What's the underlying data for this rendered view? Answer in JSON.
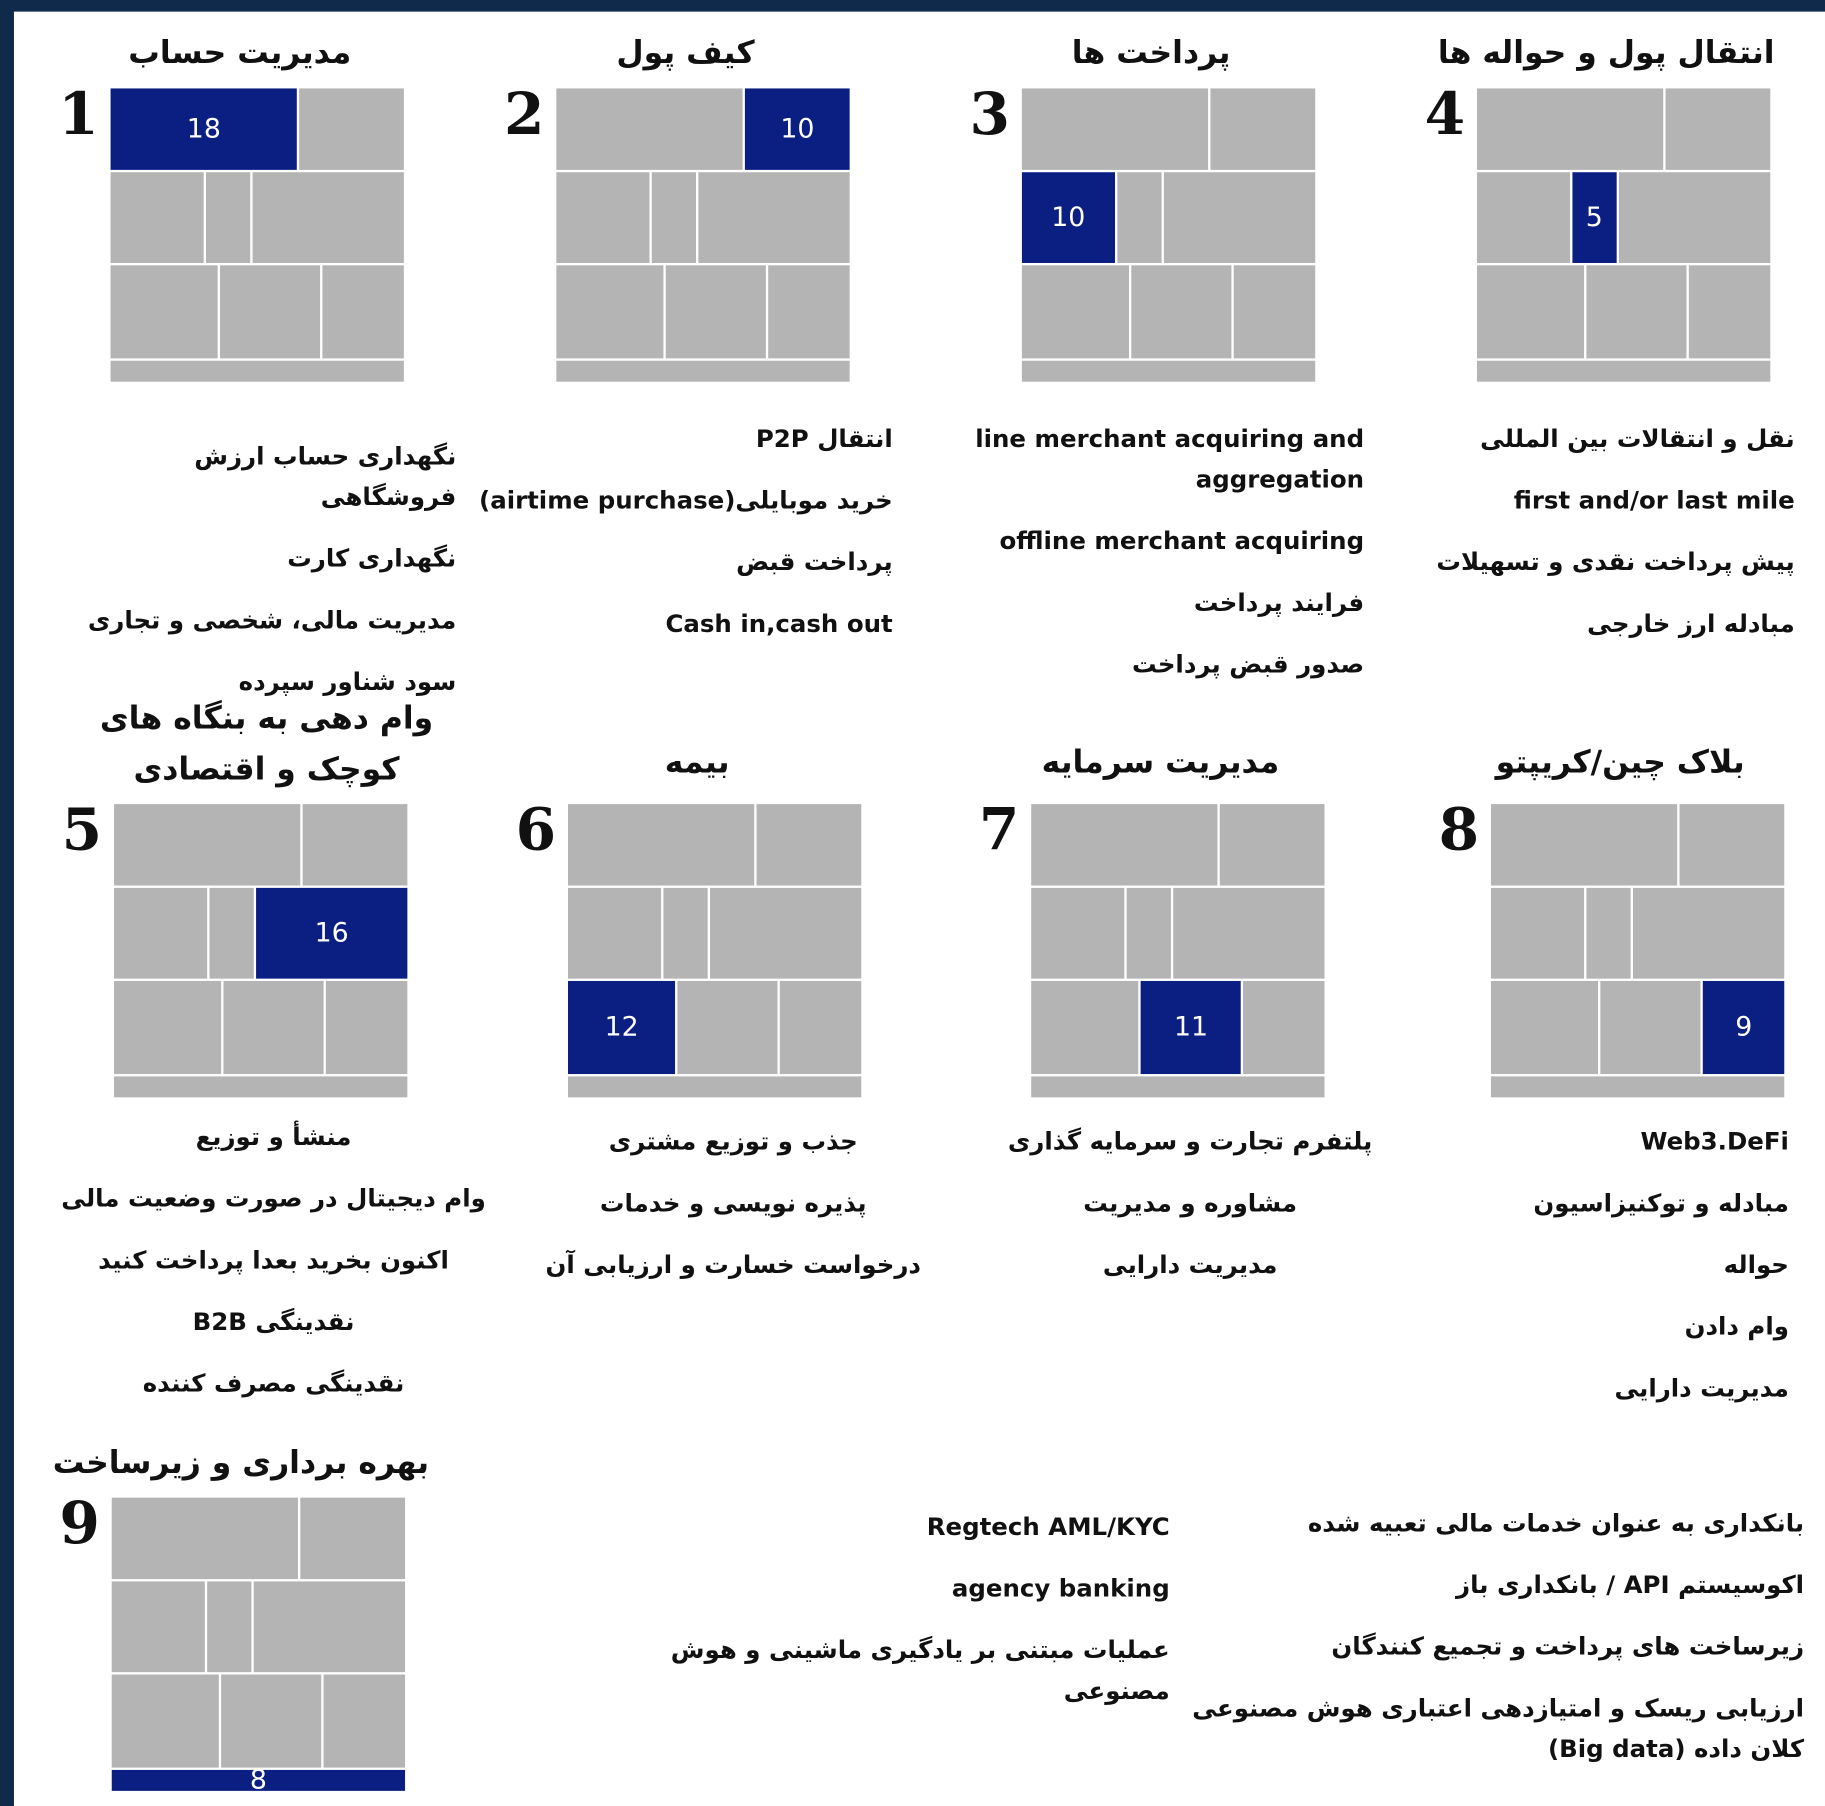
{
  "panels": [
    {
      "number": "1",
      "title": "مدیریت حساب",
      "highlight": "18",
      "columns": [
        [
          "نگهداری حساب ارزش فروشگاهی",
          "نگهداری کارت",
          "مدیریت مالی، شخصی و تجاری",
          "سود شناور سپرده"
        ]
      ]
    },
    {
      "number": "2",
      "title": "کیف پول",
      "highlight": "10",
      "columns": [
        [
          "انتقال P2P",
          "خرید موبایلی(airtime purchase)",
          "پرداخت قبض",
          "Cash in,cash out"
        ]
      ]
    },
    {
      "number": "3",
      "title": "پرداخت ها",
      "highlight": "10",
      "columns": [
        [
          "line merchant acquiring and aggregation",
          "offline merchant acquiring",
          "فرایند پرداخت",
          "صدور قبض پرداخت"
        ]
      ]
    },
    {
      "number": "4",
      "title": "انتقال پول و حواله ها",
      "highlight": "5",
      "columns": [
        [
          "نقل و انتقالات بین المللی",
          "first and/or last mile",
          "پیش پرداخت نقدی و تسهیلات",
          "مبادله ارز خارجی"
        ]
      ]
    },
    {
      "number": "5",
      "title": "وام دهی به بنگاه های کوچک و اقتصادی",
      "highlight": "16",
      "columns": [
        [
          "منشأ و توزیع",
          "وام دیجیتال در صورت وضعیت مالی",
          "اکنون بخرید بعدا پرداخت کنید",
          "نقدینگی B2B",
          "نقدینگی مصرف کننده"
        ]
      ]
    },
    {
      "number": "6",
      "title": "بیمه",
      "highlight": "12",
      "columns": [
        [
          "جذب و توزیع مشتری",
          "پذیره نویسی و خدمات",
          "درخواست خسارت و ارزیابی آن"
        ]
      ]
    },
    {
      "number": "7",
      "title": "مدیریت سرمایه",
      "highlight": "11",
      "columns": [
        [
          "پلتفرم تجارت و سرمایه گذاری",
          "مشاوره و مدیریت",
          "مدیریت دارایی"
        ]
      ]
    },
    {
      "number": "8",
      "title": "بلاک چین/کریپتو",
      "highlight": "9",
      "columns": [
        [
          "Web3.DeFi",
          "مبادله و توکنیزاسیون",
          "حواله",
          "وام دادن",
          "مدیریت دارایی"
        ]
      ]
    },
    {
      "number": "9",
      "title": "بهره برداری و زیرساخت",
      "highlight": "8",
      "columns": [
        [
          "بانکداری به عنوان خدمات مالی تعبیه شده",
          "اکوسیستم API / بانکداری باز",
          "زیرساخت های پرداخت و تجمیع کنندگان",
          "ارزیابی ریسک و امتیازدهی اعتباری هوش مصنوعی کلان داده (Big data)"
        ],
        [
          "Regtech AML/KYC",
          "agency banking",
          "عملیات مبتنی بر یادگیری ماشینی و هوش مصنوعی"
        ]
      ]
    }
  ]
}
